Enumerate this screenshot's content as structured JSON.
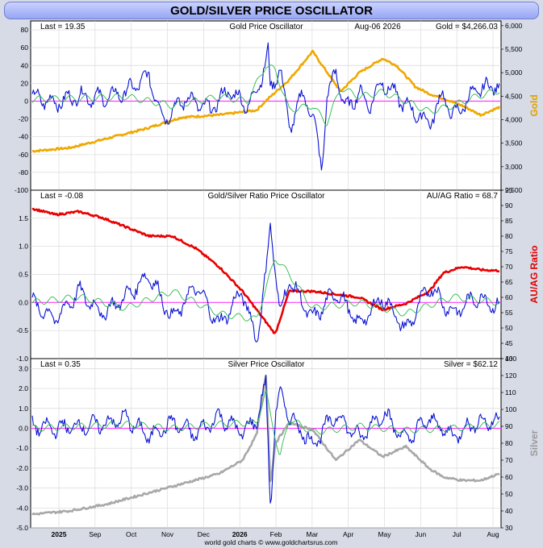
{
  "title": "GOLD/SILVER PRICE OSCILLATOR",
  "footer": "world gold charts © www.goldchartsrus.com",
  "x_axis": {
    "labels": [
      "2025",
      "Sep",
      "Oct",
      "Nov",
      "Dec",
      "2026",
      "Feb",
      "Mar",
      "Apr",
      "May",
      "Jun",
      "Jul",
      "Aug"
    ],
    "bold": [
      "2025",
      "2026"
    ]
  },
  "chart_data": [
    {
      "type": "line",
      "panel": "gold",
      "header_left": "Last = 19.35",
      "header_center": "Gold Price Oscillator",
      "header_date": "Aug-06  2026",
      "header_right": "Gold = $4,266.03",
      "side_label": "Gold",
      "side_color": "#e0a000",
      "left_ticks": [
        "80",
        "60",
        "40",
        "20",
        "0",
        "-20",
        "-40",
        "-60",
        "-80",
        "-100"
      ],
      "left_lim": [
        -100,
        90
      ],
      "right_ticks": [
        "6,000",
        "5,500",
        "5,000",
        "4,500",
        "4,000",
        "3,500",
        "3,000",
        "2,500"
      ],
      "right_lim": [
        2500,
        6100
      ],
      "zero_line": 0,
      "series": [
        {
          "name": "Gold",
          "axis": "right",
          "color": "#f0a800",
          "x": [
            0,
            8,
            16,
            24,
            32,
            40,
            48,
            50,
            55,
            60,
            66,
            70,
            75,
            78,
            82,
            85,
            88,
            92,
            96,
            100
          ],
          "values": [
            3330,
            3400,
            3600,
            3800,
            4050,
            4100,
            4200,
            4400,
            4850,
            5450,
            4600,
            5000,
            5300,
            5150,
            4700,
            4550,
            4450,
            4300,
            4100,
            4266
          ]
        },
        {
          "name": "Oscillator",
          "axis": "left",
          "color": "#0a14d2",
          "x": [
            0,
            5,
            10,
            15,
            20,
            25,
            28,
            33,
            38,
            42,
            46,
            48,
            50,
            50.5,
            51,
            53,
            55,
            58,
            60,
            62,
            63,
            65,
            67,
            70,
            72,
            75,
            80,
            85,
            88,
            90,
            95,
            100
          ],
          "values": [
            5,
            -2,
            6,
            3,
            10,
            28,
            -20,
            4,
            -10,
            12,
            -5,
            10,
            45,
            55,
            10,
            40,
            -30,
            8,
            -15,
            -75,
            0,
            35,
            -10,
            10,
            -5,
            22,
            -5,
            -25,
            8,
            -18,
            12,
            19
          ]
        },
        {
          "name": "Signal",
          "axis": "left",
          "color": "#2dbb4a",
          "x": [
            0,
            10,
            20,
            30,
            40,
            46,
            50,
            52,
            55,
            60,
            63,
            66,
            70,
            75,
            80,
            85,
            90,
            95,
            100
          ],
          "values": [
            2,
            3,
            5,
            -5,
            5,
            0,
            40,
            35,
            -10,
            -5,
            -25,
            15,
            5,
            10,
            0,
            -12,
            -5,
            5,
            12
          ]
        }
      ]
    },
    {
      "type": "line",
      "panel": "ratio",
      "header_left": "Last = -0.08",
      "header_center": "Gold/Silver Ratio Price Oscillator",
      "header_right": "AU/AG Ratio = 68.7",
      "side_label": "AU/AG Ratio",
      "side_color": "#e00000",
      "left_ticks": [
        "1.5",
        "1.0",
        "0.5",
        "0.0",
        "-0.5",
        "-1.0"
      ],
      "left_lim": [
        -1.0,
        2.0
      ],
      "right_ticks": [
        "95",
        "90",
        "85",
        "80",
        "75",
        "70",
        "65",
        "60",
        "55",
        "50",
        "45",
        "40"
      ],
      "right_lim": [
        40,
        95
      ],
      "zero_line": 0,
      "series": [
        {
          "name": "AU/AG Ratio",
          "axis": "right",
          "color": "#e80000",
          "x": [
            0,
            5,
            10,
            15,
            20,
            25,
            30,
            35,
            40,
            45,
            50,
            52,
            55,
            60,
            65,
            70,
            75,
            80,
            85,
            88,
            92,
            96,
            100
          ],
          "values": [
            89,
            87,
            88,
            86,
            83,
            80,
            80,
            76,
            70,
            62,
            52,
            48,
            62,
            62,
            61,
            60,
            56,
            58,
            62,
            68,
            70,
            69,
            68.7
          ]
        },
        {
          "name": "Oscillator",
          "axis": "left",
          "color": "#0a14d2",
          "x": [
            0,
            5,
            10,
            15,
            20,
            25,
            30,
            35,
            40,
            45,
            48,
            50,
            51,
            53,
            55,
            60,
            65,
            70,
            75,
            80,
            85,
            90,
            95,
            100
          ],
          "values": [
            0.0,
            -0.3,
            0.2,
            -0.2,
            0.1,
            0.5,
            -0.3,
            0.3,
            -0.4,
            0.2,
            -0.7,
            0.5,
            1.4,
            -0.2,
            0.4,
            -0.3,
            0.2,
            -0.4,
            0.1,
            -0.5,
            0.3,
            -0.2,
            0.1,
            -0.08
          ]
        },
        {
          "name": "Signal",
          "axis": "left",
          "color": "#2dbb4a",
          "x": [
            0,
            10,
            20,
            30,
            40,
            48,
            52,
            55,
            60,
            70,
            80,
            90,
            100
          ],
          "values": [
            0.0,
            0.1,
            -0.1,
            0.2,
            -0.2,
            -0.3,
            0.8,
            0.5,
            -0.1,
            0.0,
            -0.2,
            0.1,
            0.0
          ]
        }
      ]
    },
    {
      "type": "line",
      "panel": "silver",
      "header_left": "Last = 0.35",
      "header_center": "Silver Price Oscillator",
      "header_right": "Silver = $62.12",
      "side_label": "Silver",
      "side_color": "#9a9a9a",
      "left_ticks": [
        "3.0",
        "2.0",
        "1.0",
        "0.0",
        "-1.0",
        "-2.0",
        "-3.0",
        "-4.0",
        "-5.0"
      ],
      "left_lim": [
        -5.0,
        3.5
      ],
      "right_ticks": [
        "130",
        "120",
        "110",
        "100",
        "90",
        "80",
        "70",
        "60",
        "50",
        "40",
        "30"
      ],
      "right_lim": [
        30,
        130
      ],
      "zero_line": 0,
      "series": [
        {
          "name": "Silver",
          "axis": "right",
          "color": "#a8a8a8",
          "x": [
            0,
            8,
            16,
            24,
            32,
            40,
            45,
            48,
            50,
            51,
            52,
            55,
            60,
            65,
            70,
            75,
            80,
            85,
            88,
            92,
            96,
            100
          ],
          "values": [
            38,
            40,
            44,
            50,
            56,
            62,
            70,
            85,
            120,
            55,
            80,
            92,
            88,
            70,
            82,
            72,
            78,
            65,
            60,
            58,
            58,
            62
          ]
        },
        {
          "name": "Oscillator",
          "axis": "left",
          "color": "#0a14d2",
          "x": [
            0,
            5,
            10,
            15,
            20,
            25,
            30,
            35,
            40,
            45,
            48,
            50,
            51,
            52,
            53,
            55,
            60,
            65,
            70,
            75,
            80,
            85,
            90,
            95,
            100
          ],
          "values": [
            0.1,
            0.0,
            0.1,
            0.2,
            0.5,
            -0.4,
            0.3,
            -0.3,
            0.6,
            -0.2,
            0.4,
            2.2,
            -4.0,
            0.5,
            1.8,
            0.6,
            -0.8,
            0.7,
            -0.5,
            0.8,
            -0.6,
            0.5,
            -0.4,
            0.3,
            0.35
          ]
        },
        {
          "name": "Signal",
          "axis": "left",
          "color": "#2dbb4a",
          "x": [
            0,
            10,
            20,
            30,
            40,
            48,
            50,
            53,
            55,
            60,
            70,
            80,
            90,
            100
          ],
          "values": [
            0.0,
            0.1,
            0.2,
            0.0,
            0.2,
            0.3,
            1.8,
            -1.5,
            0.5,
            -0.2,
            0.1,
            -0.1,
            0.0,
            0.2
          ]
        }
      ]
    }
  ]
}
